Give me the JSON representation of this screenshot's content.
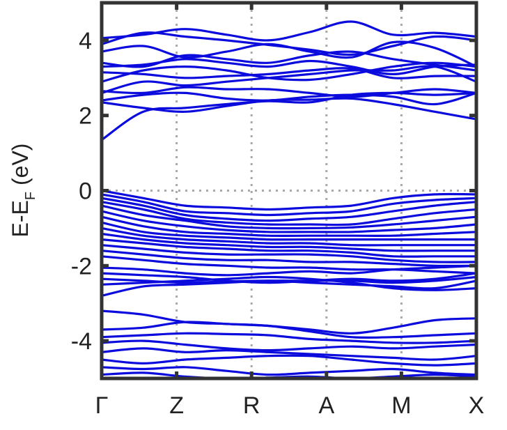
{
  "chart_data": {
    "type": "line",
    "title": "",
    "xlabel": "",
    "ylabel": {
      "main": "E-E",
      "subscript": "F",
      "unit": " (eV)"
    },
    "x_ticks": [
      "Γ",
      "Z",
      "R",
      "A",
      "M",
      "X"
    ],
    "x_range": [
      0,
      5
    ],
    "ylim": [
      -5,
      5
    ],
    "y_ticks": [
      4,
      2,
      0,
      -2,
      -4
    ],
    "y_tick_labels": [
      "4",
      "2",
      "0",
      "-2",
      "-4"
    ],
    "grid": {
      "vertical_at_ticks": true,
      "fermi_line": 0,
      "style": "dotted",
      "color": "#a8a8a8"
    },
    "line_color": "#0b0bdd",
    "frame_color": "#333333",
    "series": [
      {
        "y": [
          4.06,
          4.15,
          4.3,
          4.15,
          4.0,
          4.22,
          4.5,
          4.15,
          4.2,
          4.1
        ]
      },
      {
        "y": [
          3.9,
          4.2,
          4.1,
          4.0,
          3.88,
          3.75,
          3.62,
          3.85,
          4.1,
          4.0
        ]
      },
      {
        "y": [
          3.7,
          3.85,
          3.55,
          3.7,
          3.9,
          3.7,
          3.55,
          3.95,
          3.8,
          3.3
        ]
      },
      {
        "y": [
          3.4,
          3.3,
          3.6,
          3.5,
          3.4,
          3.6,
          3.7,
          3.5,
          3.35,
          3.2
        ]
      },
      {
        "y": [
          3.3,
          3.35,
          3.5,
          3.4,
          3.3,
          3.45,
          3.3,
          3.1,
          3.3,
          3.35
        ]
      },
      {
        "y": [
          3.15,
          3.1,
          3.0,
          3.05,
          3.1,
          3.2,
          3.25,
          3.0,
          3.05,
          3.05
        ]
      },
      {
        "y": [
          2.9,
          3.2,
          3.3,
          3.2,
          3.0,
          2.95,
          3.1,
          3.3,
          3.4,
          3.3
        ]
      },
      {
        "y": [
          2.6,
          2.9,
          2.8,
          2.9,
          3.0,
          3.1,
          3.2,
          3.2,
          3.3,
          2.9
        ]
      },
      {
        "y": [
          2.65,
          2.6,
          2.75,
          2.7,
          2.7,
          2.6,
          2.5,
          2.6,
          2.7,
          2.6
        ]
      },
      {
        "y": [
          2.4,
          2.55,
          2.6,
          2.45,
          2.4,
          2.5,
          2.55,
          2.5,
          2.3,
          2.6
        ]
      },
      {
        "y": [
          2.35,
          2.2,
          2.1,
          2.25,
          2.4,
          2.42,
          2.45,
          2.3,
          2.1,
          1.9
        ]
      },
      {
        "y": [
          1.35,
          2.1,
          2.2,
          2.3,
          2.38,
          2.35,
          2.55,
          2.6,
          2.55,
          2.6
        ]
      },
      {
        "y": [
          0.0,
          -0.2,
          -0.4,
          -0.45,
          -0.5,
          -0.45,
          -0.4,
          -0.2,
          -0.1,
          -0.1
        ]
      },
      {
        "y": [
          -0.1,
          -0.3,
          -0.55,
          -0.6,
          -0.65,
          -0.6,
          -0.55,
          -0.35,
          -0.25,
          -0.2
        ]
      },
      {
        "y": [
          -0.2,
          -0.4,
          -0.65,
          -0.75,
          -0.8,
          -0.75,
          -0.7,
          -0.55,
          -0.4,
          -0.3
        ]
      },
      {
        "y": [
          -0.3,
          -0.5,
          -0.75,
          -0.85,
          -0.9,
          -0.9,
          -0.9,
          -0.75,
          -0.6,
          -0.5
        ]
      },
      {
        "y": [
          -0.4,
          -0.65,
          -0.8,
          -0.95,
          -1.0,
          -1.0,
          -0.98,
          -0.9,
          -0.8,
          -0.7
        ]
      },
      {
        "y": [
          -0.55,
          -0.8,
          -0.95,
          -1.05,
          -1.1,
          -1.1,
          -1.1,
          -1.05,
          -1.0,
          -0.9
        ]
      },
      {
        "y": [
          -0.7,
          -0.95,
          -1.1,
          -1.15,
          -1.2,
          -1.2,
          -1.2,
          -1.2,
          -1.15,
          -1.1
        ]
      },
      {
        "y": [
          -0.85,
          -1.1,
          -1.2,
          -1.25,
          -1.3,
          -1.3,
          -1.3,
          -1.3,
          -1.3,
          -1.3
        ]
      },
      {
        "y": [
          -1.0,
          -1.2,
          -1.3,
          -1.35,
          -1.4,
          -1.4,
          -1.45,
          -1.45,
          -1.45,
          -1.45
        ]
      },
      {
        "y": [
          -1.15,
          -1.3,
          -1.4,
          -1.45,
          -1.5,
          -1.5,
          -1.55,
          -1.6,
          -1.6,
          -1.6
        ]
      },
      {
        "y": [
          -1.3,
          -1.4,
          -1.5,
          -1.55,
          -1.6,
          -1.6,
          -1.65,
          -1.75,
          -1.75,
          -1.75
        ]
      },
      {
        "y": [
          -1.45,
          -1.55,
          -1.65,
          -1.7,
          -1.7,
          -1.7,
          -1.75,
          -1.85,
          -1.9,
          -1.9
        ]
      },
      {
        "y": [
          -1.6,
          -1.7,
          -1.8,
          -1.85,
          -1.85,
          -1.9,
          -1.9,
          -1.95,
          -2.0,
          -2.0
        ]
      },
      {
        "y": [
          -1.75,
          -1.85,
          -1.95,
          -2.0,
          -2.05,
          -2.05,
          -2.1,
          -2.1,
          -2.15,
          -2.2
        ]
      },
      {
        "y": [
          -2.05,
          -2.1,
          -2.2,
          -2.25,
          -2.2,
          -2.15,
          -2.2,
          -2.1,
          -2.05,
          -2.0
        ]
      },
      {
        "y": [
          -2.2,
          -2.25,
          -2.3,
          -2.4,
          -2.45,
          -2.4,
          -2.35,
          -2.4,
          -2.35,
          -2.2
        ]
      },
      {
        "y": [
          -2.35,
          -2.4,
          -2.45,
          -2.42,
          -2.4,
          -2.45,
          -2.5,
          -2.55,
          -2.6,
          -2.4
        ]
      },
      {
        "y": [
          -2.5,
          -2.45,
          -2.4,
          -2.35,
          -2.3,
          -2.35,
          -2.45,
          -2.6,
          -2.65,
          -2.6
        ]
      },
      {
        "y": [
          -2.8,
          -2.55,
          -2.5,
          -2.45,
          -2.4,
          -2.4,
          -2.4,
          -2.45,
          -2.4,
          -2.3
        ]
      },
      {
        "y": [
          -3.2,
          -3.3,
          -3.5,
          -3.55,
          -3.6,
          -3.7,
          -3.8,
          -3.65,
          -3.45,
          -3.4
        ]
      },
      {
        "y": [
          -3.7,
          -3.65,
          -3.5,
          -3.55,
          -3.6,
          -3.75,
          -3.9,
          -3.9,
          -3.85,
          -3.8
        ]
      },
      {
        "y": [
          -3.9,
          -3.85,
          -3.8,
          -3.82,
          -3.85,
          -3.95,
          -4.0,
          -4.05,
          -4.05,
          -4.0
        ]
      },
      {
        "y": [
          -4.05,
          -4.0,
          -4.1,
          -4.2,
          -4.25,
          -4.2,
          -4.15,
          -4.2,
          -4.15,
          -4.1
        ]
      },
      {
        "y": [
          -4.3,
          -4.2,
          -4.3,
          -4.25,
          -4.3,
          -4.35,
          -4.4,
          -4.45,
          -4.5,
          -4.4
        ]
      },
      {
        "y": [
          -4.5,
          -4.6,
          -4.5,
          -4.45,
          -4.4,
          -4.4,
          -4.5,
          -4.6,
          -4.65,
          -4.6
        ]
      },
      {
        "y": [
          -4.7,
          -4.75,
          -4.7,
          -4.8,
          -4.9,
          -4.85,
          -4.8,
          -4.75,
          -4.85,
          -4.9
        ]
      },
      {
        "y": [
          -4.9,
          -4.85,
          -4.95,
          -5.0,
          -4.98,
          -4.95,
          -5.0,
          -4.95,
          -4.9,
          -4.95
        ]
      }
    ]
  }
}
